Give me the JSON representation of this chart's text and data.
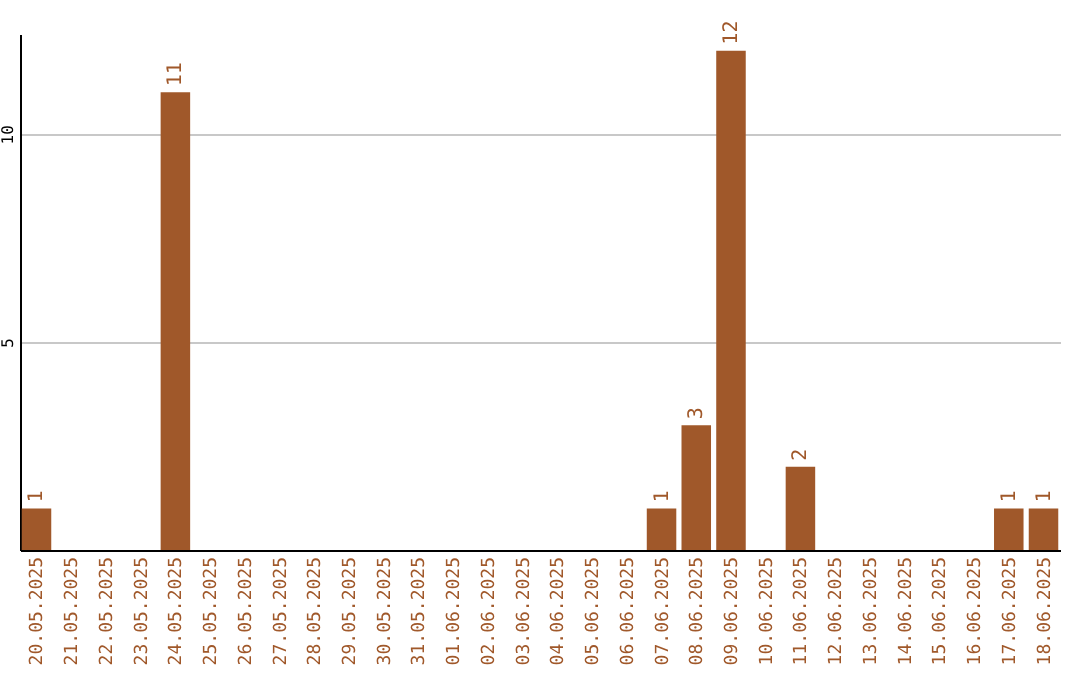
{
  "chart_data": {
    "type": "bar",
    "categories": [
      "20.05.2025",
      "21.05.2025",
      "22.05.2025",
      "23.05.2025",
      "24.05.2025",
      "25.05.2025",
      "26.05.2025",
      "27.05.2025",
      "28.05.2025",
      "29.05.2025",
      "30.05.2025",
      "31.05.2025",
      "01.06.2025",
      "02.06.2025",
      "03.06.2025",
      "04.06.2025",
      "05.06.2025",
      "06.06.2025",
      "07.06.2025",
      "08.06.2025",
      "09.06.2025",
      "10.06.2025",
      "11.06.2025",
      "12.06.2025",
      "13.06.2025",
      "14.06.2025",
      "15.06.2025",
      "16.06.2025",
      "17.06.2025",
      "18.06.2025"
    ],
    "values": [
      1,
      0,
      0,
      0,
      11,
      0,
      0,
      0,
      0,
      0,
      0,
      0,
      0,
      0,
      0,
      0,
      0,
      0,
      1,
      3,
      12,
      0,
      2,
      0,
      0,
      0,
      0,
      0,
      1,
      1
    ],
    "value_labels": [
      "1",
      null,
      null,
      null,
      "11",
      null,
      null,
      null,
      null,
      null,
      null,
      null,
      null,
      null,
      null,
      null,
      null,
      null,
      "1",
      "3",
      "12",
      null,
      "2",
      null,
      null,
      null,
      null,
      null,
      "1",
      "1"
    ],
    "color": "#a0582a",
    "ylim": [
      0,
      12.4
    ],
    "yticks": [
      5,
      10
    ],
    "grid": "y"
  }
}
